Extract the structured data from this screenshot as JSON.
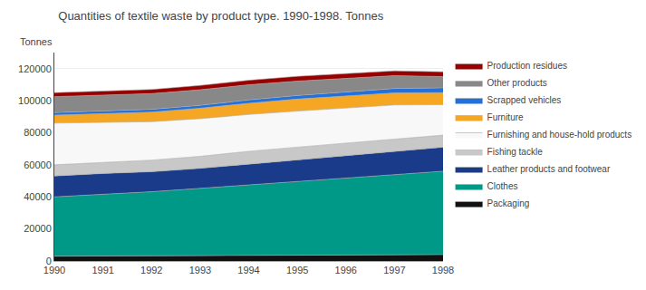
{
  "chart_data": {
    "type": "area",
    "title": "Quantities of textile waste by product type. 1990-1998. Tonnes",
    "ylabel": "Tonnes",
    "x": [
      1990,
      1991,
      1992,
      1993,
      1994,
      1995,
      1996,
      1997,
      1998
    ],
    "series": [
      {
        "name": "Packaging",
        "color": "#111111",
        "values": [
          3000,
          3100,
          3200,
          3300,
          3400,
          3500,
          3600,
          3800,
          4000
        ]
      },
      {
        "name": "Clothes",
        "color": "#009988",
        "values": [
          37000,
          38500,
          40000,
          42000,
          44000,
          46000,
          48000,
          50000,
          52000
        ]
      },
      {
        "name": "Leather products and footwear",
        "color": "#1a3a8a",
        "values": [
          13000,
          13000,
          12500,
          12500,
          13000,
          13500,
          14000,
          14500,
          15000
        ]
      },
      {
        "name": "Fishing tackle",
        "color": "#c8c8c8",
        "values": [
          7000,
          7000,
          7200,
          7500,
          8000,
          8000,
          8000,
          8000,
          7500
        ]
      },
      {
        "name": "Furnishing and house-hold products",
        "color": "#f8f8f8",
        "values": [
          26000,
          25000,
          24000,
          23500,
          23000,
          22500,
          22000,
          21000,
          19000
        ]
      },
      {
        "name": "Furniture",
        "color": "#f5a623",
        "values": [
          5000,
          5500,
          6000,
          6500,
          7000,
          7500,
          7500,
          7500,
          7500
        ]
      },
      {
        "name": "Scrapped vehicles",
        "color": "#2070dd",
        "values": [
          1500,
          1600,
          1700,
          1800,
          2000,
          2200,
          2500,
          2800,
          3000
        ]
      },
      {
        "name": "Other products",
        "color": "#888888",
        "values": [
          10000,
          9800,
          9800,
          9700,
          9500,
          9000,
          8500,
          8000,
          7000
        ]
      },
      {
        "name": "Production residues",
        "color": "#990000",
        "values": [
          2500,
          2500,
          2600,
          2700,
          2800,
          3000,
          3000,
          3000,
          3000
        ]
      }
    ],
    "stacked": true,
    "xlim": [
      1990,
      1998
    ],
    "xticks": [
      1990,
      1991,
      1992,
      1993,
      1994,
      1995,
      1996,
      1997,
      1998
    ],
    "ylim": [
      0,
      130000
    ],
    "yticks": [
      0,
      20000,
      40000,
      60000,
      80000,
      100000,
      120000
    ],
    "grid": true,
    "legend": "right"
  }
}
